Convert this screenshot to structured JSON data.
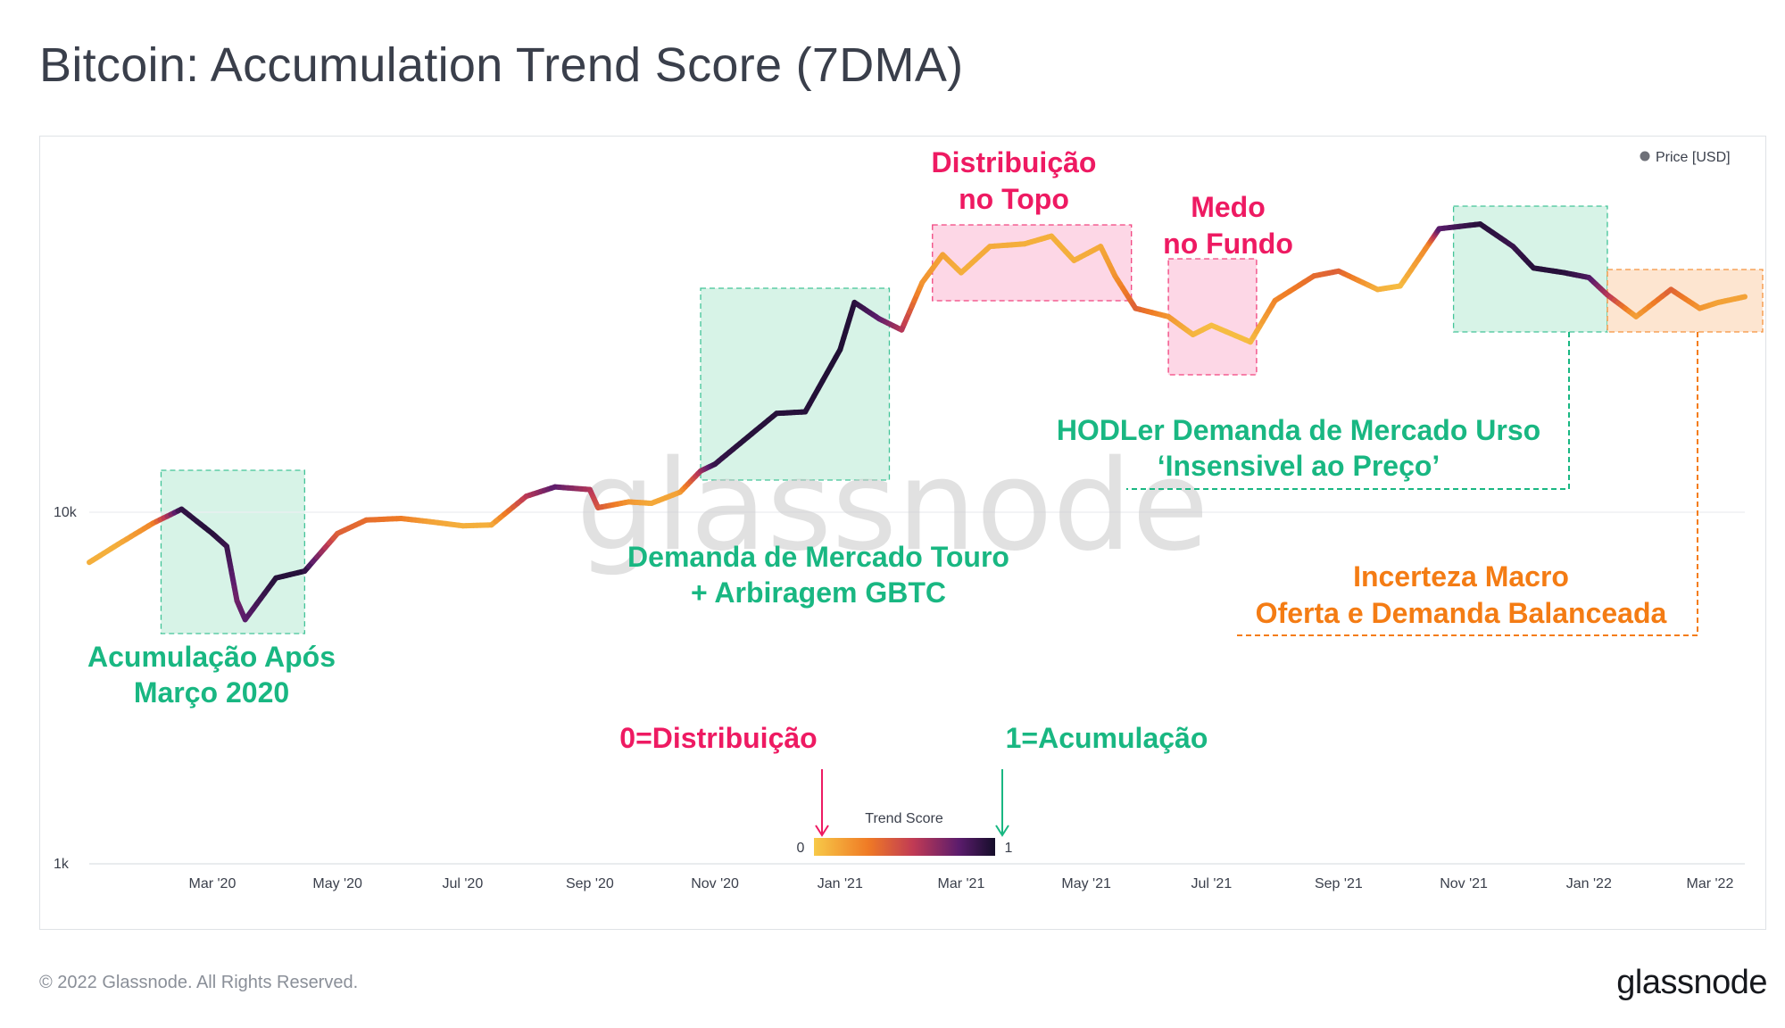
{
  "title": "Bitcoin: Accumulation Trend Score (7DMA)",
  "footer": "© 2022 Glassnode. All Rights Reserved.",
  "brand": "glassnode",
  "watermark": "glassnode",
  "colors": {
    "green": "#19b782",
    "pink": "#ee1a62",
    "orange": "#f47c14",
    "green_fill": "#d7f3e7",
    "pink_fill": "#fdd7e6",
    "orange_fill": "#fde5d0",
    "score_low": "#f7c948",
    "score_mid": "#b42b62",
    "score_high": "#1a1238"
  },
  "legend": {
    "label": "Price [USD]"
  },
  "colorbar": {
    "title": "Trend Score",
    "min_label": "0",
    "max_label": "1"
  },
  "annotations": {
    "acumulacao": [
      "Acumulação Após",
      "Março 2020"
    ],
    "touro": [
      "Demanda de Mercado Touro",
      "+ Arbiragem GBTC"
    ],
    "distribuicao": [
      "Distribuição",
      "no Topo"
    ],
    "medo": [
      "Medo",
      "no Fundo"
    ],
    "hodler": [
      "HODLer Demanda de Mercado Urso",
      "‘Insensivel ao Preço’"
    ],
    "incerteza": [
      "Incerteza Macro",
      "Oferta e Demanda Balanceada"
    ],
    "zero": "0=Distribuição",
    "one": "1=Acumulação"
  },
  "chart_data": {
    "type": "line",
    "title": "Bitcoin: Accumulation Trend Score (7DMA)",
    "y_scale": "log",
    "ylim": [
      1000,
      100000
    ],
    "y_ticks": [
      {
        "value": 1000,
        "label": "1k"
      },
      {
        "value": 10000,
        "label": "10k"
      }
    ],
    "x_range": [
      "2020-01-01",
      "2022-03-18"
    ],
    "x_ticks": [
      {
        "date": "2020-03-01",
        "label": "Mar '20"
      },
      {
        "date": "2020-05-01",
        "label": "May '20"
      },
      {
        "date": "2020-07-01",
        "label": "Jul '20"
      },
      {
        "date": "2020-09-01",
        "label": "Sep '20"
      },
      {
        "date": "2020-11-01",
        "label": "Nov '20"
      },
      {
        "date": "2021-01-01",
        "label": "Jan '21"
      },
      {
        "date": "2021-03-01",
        "label": "Mar '21"
      },
      {
        "date": "2021-05-01",
        "label": "May '21"
      },
      {
        "date": "2021-07-01",
        "label": "Jul '21"
      },
      {
        "date": "2021-09-01",
        "label": "Sep '21"
      },
      {
        "date": "2021-11-01",
        "label": "Nov '21"
      },
      {
        "date": "2022-01-01",
        "label": "Jan '22"
      },
      {
        "date": "2022-03-01",
        "label": "Mar '22"
      }
    ],
    "series": [
      {
        "name": "Price [USD]",
        "color_by": "Trend Score",
        "points": [
          {
            "date": "2020-01-01",
            "price": 7200,
            "score": 0.1
          },
          {
            "date": "2020-01-15",
            "price": 8100,
            "score": 0.1
          },
          {
            "date": "2020-02-01",
            "price": 9300,
            "score": 0.25
          },
          {
            "date": "2020-02-15",
            "price": 10200,
            "score": 0.92
          },
          {
            "date": "2020-03-01",
            "price": 8700,
            "score": 0.95
          },
          {
            "date": "2020-03-08",
            "price": 8000,
            "score": 0.9
          },
          {
            "date": "2020-03-13",
            "price": 5600,
            "score": 0.75
          },
          {
            "date": "2020-03-17",
            "price": 4950,
            "score": 0.8
          },
          {
            "date": "2020-04-01",
            "price": 6500,
            "score": 0.95
          },
          {
            "date": "2020-04-15",
            "price": 6800,
            "score": 0.95
          },
          {
            "date": "2020-05-01",
            "price": 8700,
            "score": 0.4
          },
          {
            "date": "2020-05-15",
            "price": 9500,
            "score": 0.35
          },
          {
            "date": "2020-06-01",
            "price": 9600,
            "score": 0.3
          },
          {
            "date": "2020-06-15",
            "price": 9400,
            "score": 0.15
          },
          {
            "date": "2020-07-01",
            "price": 9150,
            "score": 0.1
          },
          {
            "date": "2020-07-15",
            "price": 9200,
            "score": 0.1
          },
          {
            "date": "2020-08-01",
            "price": 11100,
            "score": 0.55
          },
          {
            "date": "2020-08-15",
            "price": 11800,
            "score": 0.8
          },
          {
            "date": "2020-09-01",
            "price": 11600,
            "score": 0.6
          },
          {
            "date": "2020-09-05",
            "price": 10300,
            "score": 0.45
          },
          {
            "date": "2020-09-20",
            "price": 10700,
            "score": 0.2
          },
          {
            "date": "2020-10-01",
            "price": 10600,
            "score": 0.12
          },
          {
            "date": "2020-10-15",
            "price": 11400,
            "score": 0.15
          },
          {
            "date": "2020-10-25",
            "price": 13100,
            "score": 0.6
          },
          {
            "date": "2020-11-01",
            "price": 13700,
            "score": 0.9
          },
          {
            "date": "2020-11-15",
            "price": 16000,
            "score": 0.95
          },
          {
            "date": "2020-12-01",
            "price": 19100,
            "score": 0.95
          },
          {
            "date": "2020-12-15",
            "price": 19300,
            "score": 0.95
          },
          {
            "date": "2021-01-01",
            "price": 29000,
            "score": 0.97
          },
          {
            "date": "2021-01-08",
            "price": 39500,
            "score": 0.95
          },
          {
            "date": "2021-01-20",
            "price": 35500,
            "score": 0.8
          },
          {
            "date": "2021-01-31",
            "price": 33000,
            "score": 0.6
          },
          {
            "date": "2021-02-10",
            "price": 45000,
            "score": 0.2
          },
          {
            "date": "2021-02-20",
            "price": 54000,
            "score": 0.15
          },
          {
            "date": "2021-03-01",
            "price": 48000,
            "score": 0.1
          },
          {
            "date": "2021-03-15",
            "price": 57000,
            "score": 0.12
          },
          {
            "date": "2021-04-01",
            "price": 58000,
            "score": 0.1
          },
          {
            "date": "2021-04-14",
            "price": 61000,
            "score": 0.1
          },
          {
            "date": "2021-04-25",
            "price": 52000,
            "score": 0.1
          },
          {
            "date": "2021-05-08",
            "price": 57000,
            "score": 0.12
          },
          {
            "date": "2021-05-15",
            "price": 47000,
            "score": 0.2
          },
          {
            "date": "2021-05-25",
            "price": 38000,
            "score": 0.4
          },
          {
            "date": "2021-06-10",
            "price": 36000,
            "score": 0.2
          },
          {
            "date": "2021-06-22",
            "price": 32000,
            "score": 0.08
          },
          {
            "date": "2021-07-01",
            "price": 34000,
            "score": 0.05
          },
          {
            "date": "2021-07-20",
            "price": 30500,
            "score": 0.05
          },
          {
            "date": "2021-08-01",
            "price": 40000,
            "score": 0.25
          },
          {
            "date": "2021-08-20",
            "price": 47000,
            "score": 0.35
          },
          {
            "date": "2021-09-01",
            "price": 48500,
            "score": 0.4
          },
          {
            "date": "2021-09-20",
            "price": 43000,
            "score": 0.1
          },
          {
            "date": "2021-10-01",
            "price": 44000,
            "score": 0.05
          },
          {
            "date": "2021-10-15",
            "price": 58000,
            "score": 0.25
          },
          {
            "date": "2021-10-20",
            "price": 64000,
            "score": 0.8
          },
          {
            "date": "2021-11-09",
            "price": 66000,
            "score": 0.95
          },
          {
            "date": "2021-11-25",
            "price": 57000,
            "score": 0.9
          },
          {
            "date": "2021-12-05",
            "price": 49500,
            "score": 0.95
          },
          {
            "date": "2021-12-20",
            "price": 48000,
            "score": 0.95
          },
          {
            "date": "2022-01-01",
            "price": 46500,
            "score": 0.85
          },
          {
            "date": "2022-01-10",
            "price": 41500,
            "score": 0.6
          },
          {
            "date": "2022-01-24",
            "price": 36000,
            "score": 0.15
          },
          {
            "date": "2022-02-10",
            "price": 43000,
            "score": 0.4
          },
          {
            "date": "2022-02-24",
            "price": 38000,
            "score": 0.2
          },
          {
            "date": "2022-03-05",
            "price": 39500,
            "score": 0.15
          },
          {
            "date": "2022-03-18",
            "price": 41000,
            "score": 0.15
          }
        ]
      }
    ],
    "regions": [
      {
        "name": "acumulacao",
        "start": "2020-02-05",
        "end": "2020-04-15",
        "type": "green"
      },
      {
        "name": "touro",
        "start": "2020-10-25",
        "end": "2021-01-25",
        "type": "green"
      },
      {
        "name": "distribuicao",
        "start": "2021-02-15",
        "end": "2021-05-23",
        "type": "pink"
      },
      {
        "name": "medo",
        "start": "2021-06-10",
        "end": "2021-07-23",
        "type": "pink"
      },
      {
        "name": "hodler",
        "start": "2021-10-27",
        "end": "2022-01-10",
        "type": "green"
      },
      {
        "name": "incerteza",
        "start": "2022-01-10",
        "end": "2022-03-28",
        "type": "orange"
      }
    ]
  }
}
